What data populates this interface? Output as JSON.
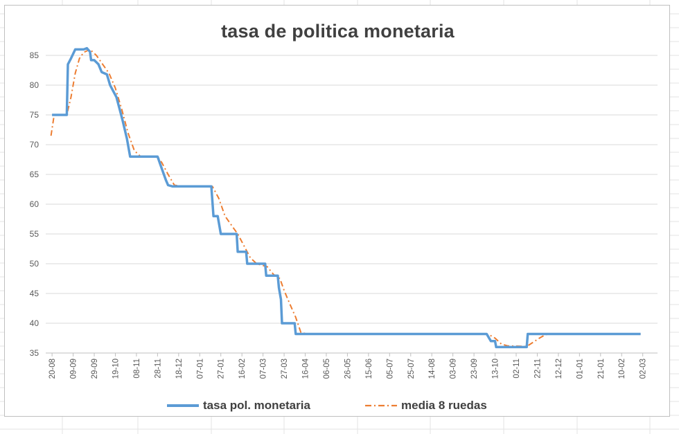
{
  "chart_data": {
    "type": "line",
    "title": "tasa de politica monetaria",
    "xlabel": "",
    "ylabel": "",
    "ylim": [
      35,
      85
    ],
    "yticks": [
      35,
      40,
      45,
      50,
      55,
      60,
      65,
      70,
      75,
      80,
      85
    ],
    "x_tick_labels": [
      "20-08",
      "09-09",
      "29-09",
      "19-10",
      "08-11",
      "28-11",
      "18-12",
      "07-01",
      "27-01",
      "16-02",
      "07-03",
      "27-03",
      "16-04",
      "06-05",
      "26-05",
      "15-06",
      "05-07",
      "25-07",
      "14-08",
      "03-09",
      "23-09",
      "13-10",
      "02-11",
      "22-11",
      "12-12",
      "01-01",
      "21-01",
      "10-02",
      "02-03"
    ],
    "grid": "horizontal",
    "legend_position": "bottom",
    "series": [
      {
        "name": "tasa pol. monetaria",
        "color": "#5b9bd5",
        "style": "solid",
        "points": [
          [
            0,
            75
          ],
          [
            0.7,
            75
          ],
          [
            0.75,
            83.5
          ],
          [
            0.9,
            84.5
          ],
          [
            1.1,
            86
          ],
          [
            1.3,
            86
          ],
          [
            1.5,
            86
          ],
          [
            1.65,
            86.2
          ],
          [
            1.8,
            85.6
          ],
          [
            1.85,
            84.2
          ],
          [
            2.0,
            84.2
          ],
          [
            2.2,
            83.5
          ],
          [
            2.35,
            82.2
          ],
          [
            2.6,
            81.8
          ],
          [
            2.75,
            80
          ],
          [
            2.9,
            79
          ],
          [
            3.05,
            78
          ],
          [
            3.2,
            76
          ],
          [
            3.35,
            74
          ],
          [
            3.55,
            71
          ],
          [
            3.7,
            68
          ],
          [
            4.4,
            68
          ],
          [
            5.0,
            68
          ],
          [
            5.15,
            66.5
          ],
          [
            5.3,
            65
          ],
          [
            5.4,
            64
          ],
          [
            5.5,
            63.2
          ],
          [
            5.7,
            63
          ],
          [
            6.5,
            63
          ],
          [
            7.0,
            63
          ],
          [
            7.55,
            63
          ],
          [
            7.65,
            58
          ],
          [
            7.85,
            58
          ],
          [
            8.0,
            55
          ],
          [
            8.5,
            55
          ],
          [
            8.75,
            55
          ],
          [
            8.8,
            52
          ],
          [
            9.2,
            52
          ],
          [
            9.25,
            50
          ],
          [
            9.6,
            50
          ],
          [
            10.1,
            50
          ],
          [
            10.15,
            48
          ],
          [
            10.6,
            48
          ],
          [
            10.7,
            48
          ],
          [
            10.75,
            46
          ],
          [
            10.85,
            44
          ],
          [
            10.9,
            40
          ],
          [
            11.5,
            40
          ],
          [
            11.55,
            38.2
          ],
          [
            12,
            38.2
          ],
          [
            13,
            38.2
          ],
          [
            14,
            38.2
          ],
          [
            15,
            38.2
          ],
          [
            16,
            38.2
          ],
          [
            17,
            38.2
          ],
          [
            18,
            38.2
          ],
          [
            19,
            38.2
          ],
          [
            20,
            38.2
          ],
          [
            20.6,
            38.2
          ],
          [
            20.8,
            37
          ],
          [
            21.0,
            37
          ],
          [
            21.05,
            36
          ],
          [
            22,
            36
          ],
          [
            22.5,
            36
          ],
          [
            22.55,
            38.2
          ],
          [
            23,
            38.2
          ],
          [
            24,
            38.2
          ],
          [
            25,
            38.2
          ],
          [
            26,
            38.2
          ],
          [
            27,
            38.2
          ],
          [
            27.9,
            38.2
          ]
        ]
      },
      {
        "name": "media 8 ruedas",
        "color": "#ed7d31",
        "style": "dash-dot",
        "points": [
          [
            -0.05,
            71.5
          ],
          [
            0.1,
            75
          ],
          [
            0.7,
            75
          ],
          [
            0.9,
            78
          ],
          [
            1.1,
            82
          ],
          [
            1.3,
            84.5
          ],
          [
            1.5,
            85.5
          ],
          [
            1.8,
            86
          ],
          [
            2.1,
            85
          ],
          [
            2.4,
            83.5
          ],
          [
            2.7,
            82
          ],
          [
            3.0,
            79.5
          ],
          [
            3.3,
            76
          ],
          [
            3.6,
            72
          ],
          [
            3.9,
            69
          ],
          [
            4.2,
            68
          ],
          [
            5.0,
            68
          ],
          [
            5.2,
            67
          ],
          [
            5.5,
            65
          ],
          [
            5.8,
            63.2
          ],
          [
            6.2,
            63
          ],
          [
            7.6,
            63
          ],
          [
            7.9,
            61
          ],
          [
            8.2,
            58
          ],
          [
            8.5,
            56.5
          ],
          [
            8.8,
            55
          ],
          [
            9.1,
            53
          ],
          [
            9.4,
            51
          ],
          [
            9.7,
            50
          ],
          [
            10.2,
            49.5
          ],
          [
            10.5,
            48.2
          ],
          [
            10.8,
            47.5
          ],
          [
            11.0,
            45.5
          ],
          [
            11.3,
            43
          ],
          [
            11.55,
            41
          ],
          [
            11.8,
            38.4
          ],
          [
            12.2,
            38.2
          ],
          [
            20.5,
            38.2
          ],
          [
            20.7,
            38.1
          ],
          [
            21.0,
            37.5
          ],
          [
            21.3,
            36.5
          ],
          [
            21.6,
            36.2
          ],
          [
            22.5,
            36.1
          ],
          [
            22.8,
            36.8
          ],
          [
            23.1,
            37.5
          ],
          [
            23.4,
            38.1
          ],
          [
            23.8,
            38.2
          ],
          [
            27.9,
            38.2
          ]
        ]
      }
    ]
  }
}
